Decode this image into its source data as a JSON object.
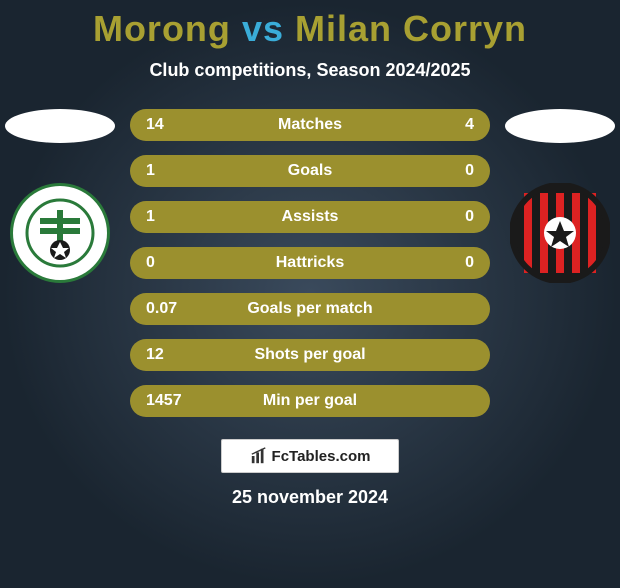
{
  "title": {
    "player1": "Morong",
    "vs": "vs",
    "player2": "Milan Corryn",
    "player1_color": "#a8a032",
    "vs_color": "#3aadd9",
    "player2_color": "#a8a032"
  },
  "subtitle": "Club competitions, Season 2024/2025",
  "stats": {
    "row_bg": "#9b902e",
    "text_color": "#ffffff",
    "rows": [
      {
        "left": "14",
        "label": "Matches",
        "right": "4"
      },
      {
        "left": "1",
        "label": "Goals",
        "right": "0"
      },
      {
        "left": "1",
        "label": "Assists",
        "right": "0"
      },
      {
        "left": "0",
        "label": "Hattricks",
        "right": "0"
      },
      {
        "left": "0.07",
        "label": "Goals per match",
        "right": ""
      },
      {
        "left": "12",
        "label": "Shots per goal",
        "right": ""
      },
      {
        "left": "1457",
        "label": "Min per goal",
        "right": ""
      }
    ]
  },
  "badges": {
    "left": {
      "name": "mfk-skalica-badge",
      "primary": "#2a7a3a",
      "secondary": "#ffffff"
    },
    "right": {
      "name": "spartak-trnava-badge",
      "primary": "#d22",
      "secondary": "#1a1a1a"
    }
  },
  "footer": {
    "logo_text": "FcTables.com",
    "date": "25 november 2024"
  }
}
